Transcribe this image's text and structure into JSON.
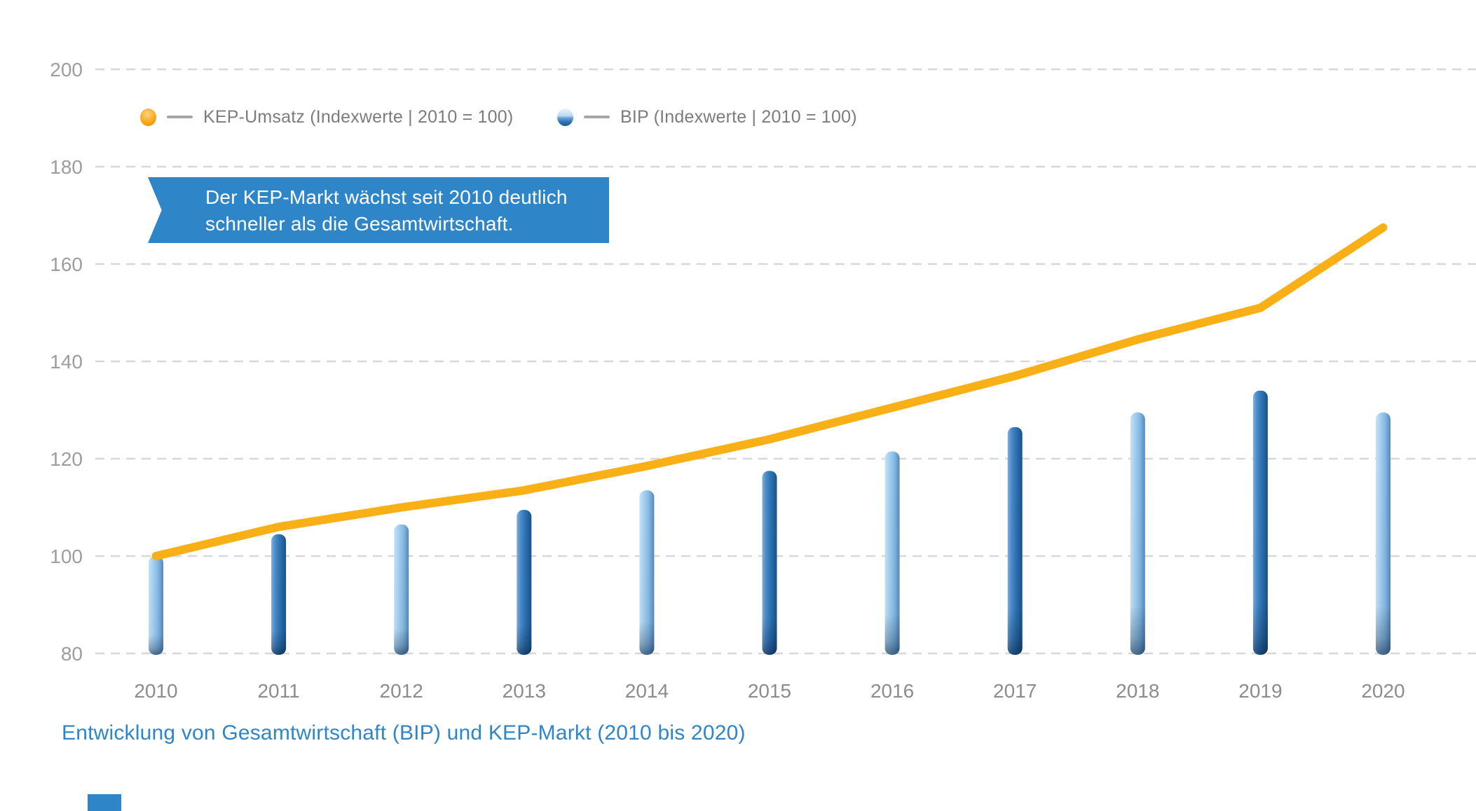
{
  "page": {
    "background": "#FFFFFF",
    "caption": "Entwicklung von Gesamtwirtschaft (BIP) und KEP-Markt (2010 bis 2020)",
    "caption_color": "#2E86C8",
    "accent_color": "#2E86C8"
  },
  "legend": {
    "items": [
      {
        "label": "KEP-Umsatz (Indexwerte | 2010 = 100)",
        "marker": "orange-sphere",
        "color": "#F9A81B"
      },
      {
        "label": "BIP (Indexwerte | 2010 = 100)",
        "marker": "blue-sphere",
        "color": "#2E75B6"
      }
    ]
  },
  "callout": {
    "line1": "Der KEP-Markt wächst seit 2010 deutlich",
    "line2": "schneller als die Gesamtwirtschaft.",
    "background": "#2E86C8",
    "text_color": "#FFFFFF"
  },
  "chart_data": {
    "type": "bar",
    "title": "Entwicklung von Gesamtwirtschaft (BIP) und KEP-Markt (2010 bis 2020)",
    "categories": [
      "2010",
      "2011",
      "2012",
      "2013",
      "2014",
      "2015",
      "2016",
      "2017",
      "2018",
      "2019",
      "2020"
    ],
    "series": [
      {
        "name": "KEP-Umsatz (Indexwerte | 2010 = 100)",
        "type": "line",
        "color": "#F9B016",
        "values": [
          100,
          106,
          110,
          113.5,
          118.5,
          124,
          130.5,
          137,
          144.5,
          151,
          167.5
        ]
      },
      {
        "name": "BIP (Indexwerte | 2010 = 100)",
        "type": "bar",
        "color_light": "#9CCAEE",
        "color_dark": "#2E75B6",
        "values": [
          100,
          104.5,
          106.5,
          109.5,
          113.5,
          117.5,
          121.5,
          126.5,
          129.5,
          134,
          129.5
        ]
      }
    ],
    "ylim": [
      80,
      200
    ],
    "yticks": [
      80,
      100,
      120,
      140,
      160,
      180,
      200
    ],
    "xlabel": "",
    "ylabel": "",
    "grid": "horizontal-dashed",
    "legend_position": "top-left-inside"
  }
}
